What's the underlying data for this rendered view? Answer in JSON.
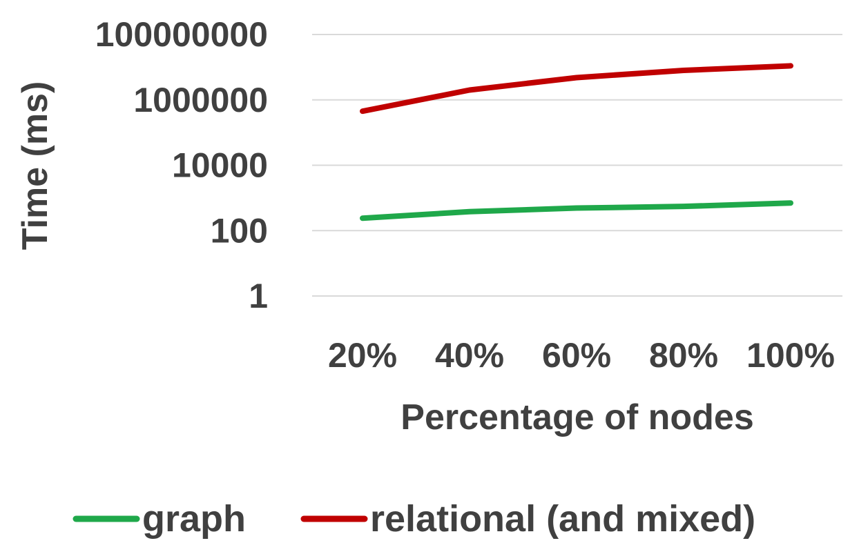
{
  "chart_data": {
    "type": "line",
    "title": "",
    "xlabel": "Percentage of nodes",
    "ylabel": "Time (ms)",
    "categories": [
      "20%",
      "40%",
      "60%",
      "80%",
      "100%"
    ],
    "y_scale": "log",
    "ylim": [
      1,
      100000000
    ],
    "y_ticks": [
      1,
      100,
      10000,
      1000000,
      100000000
    ],
    "y_tick_labels": [
      "1",
      "100",
      "10000",
      "1000000",
      "100000000"
    ],
    "grid": true,
    "legend_position": "bottom",
    "series": [
      {
        "name": "graph",
        "color": "#1fa84a",
        "values": [
          240,
          380,
          490,
          550,
          700
        ]
      },
      {
        "name": "relational (and mixed)",
        "color": "#c00000",
        "values": [
          450000,
          2000000,
          4800000,
          8000000,
          11000000
        ]
      }
    ]
  }
}
